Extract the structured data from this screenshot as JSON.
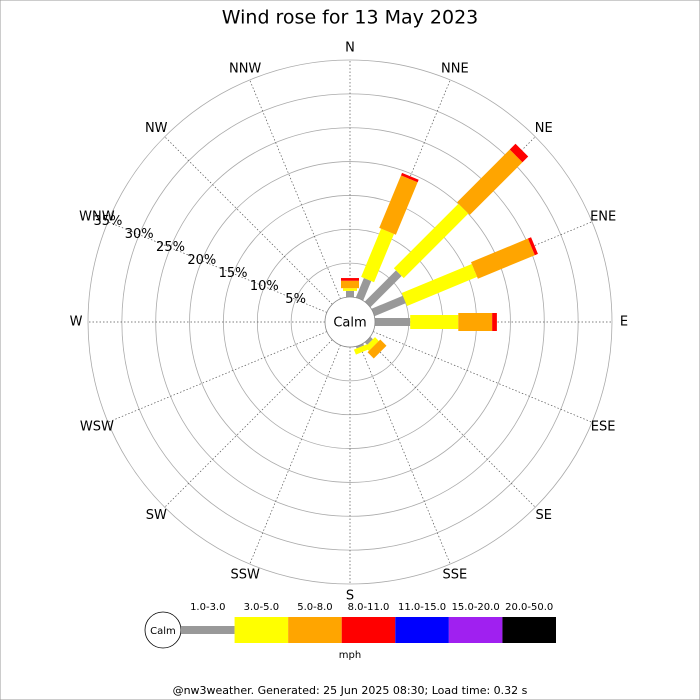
{
  "chart_data": {
    "type": "windrose",
    "title": "Wind rose for 13 May 2023",
    "directions": [
      "N",
      "NNE",
      "NE",
      "ENE",
      "E",
      "ESE",
      "SE",
      "SSE",
      "S",
      "SSW",
      "SW",
      "WSW",
      "W",
      "WNW",
      "NW",
      "NNW"
    ],
    "calm_label": "Calm",
    "rlim": [
      0,
      35
    ],
    "rticks": [
      {
        "value": 5,
        "label": "5%"
      },
      {
        "value": 10,
        "label": "10%"
      },
      {
        "value": 15,
        "label": "15%"
      },
      {
        "value": 20,
        "label": "20%"
      },
      {
        "value": 25,
        "label": "25%"
      },
      {
        "value": 30,
        "label": "30%"
      },
      {
        "value": 35,
        "label": "35%"
      }
    ],
    "series": [
      {
        "name": "1.0-3.0",
        "color": "#999999",
        "values": [
          0.9,
          3.1,
          6.5,
          5,
          5.2,
          0,
          0.5,
          0.3,
          0,
          0,
          0,
          0,
          0,
          0,
          0,
          0
        ]
      },
      {
        "name": "3.0-5.0",
        "color": "#ffff00",
        "values": [
          0.4,
          7.7,
          13.5,
          11.2,
          7.1,
          0,
          0.8,
          0.8,
          0,
          0,
          0,
          0,
          0,
          0,
          0,
          0
        ]
      },
      {
        "name": "5.0-8.0",
        "color": "#ffa500",
        "values": [
          1.1,
          8.4,
          11,
          9.1,
          5,
          0,
          1.3,
          0,
          0,
          0,
          0,
          0,
          0,
          0,
          0,
          0
        ]
      },
      {
        "name": "8.0-11.0",
        "color": "#ff0000",
        "values": [
          0.4,
          0.4,
          1.2,
          0.5,
          0.7,
          0,
          0,
          0,
          0,
          0,
          0,
          0,
          0,
          0,
          0,
          0
        ]
      },
      {
        "name": "11.0-15.0",
        "color": "#0000ff",
        "values": [
          0,
          0,
          0,
          0,
          0,
          0,
          0,
          0,
          0,
          0,
          0,
          0,
          0,
          0,
          0,
          0
        ]
      },
      {
        "name": "15.0-20.0",
        "color": "#a020f0",
        "values": [
          0,
          0,
          0,
          0,
          0,
          0,
          0,
          0,
          0,
          0,
          0,
          0,
          0,
          0,
          0,
          0
        ]
      },
      {
        "name": "20.0-50.0",
        "color": "#000000",
        "values": [
          0,
          0,
          0,
          0,
          0,
          0,
          0,
          0,
          0,
          0,
          0,
          0,
          0,
          0,
          0,
          0
        ]
      }
    ],
    "unit": "mph",
    "footer": "@nw3weather. Generated: 25 Jun 2025 08:30; Load time: 0.32 s"
  }
}
